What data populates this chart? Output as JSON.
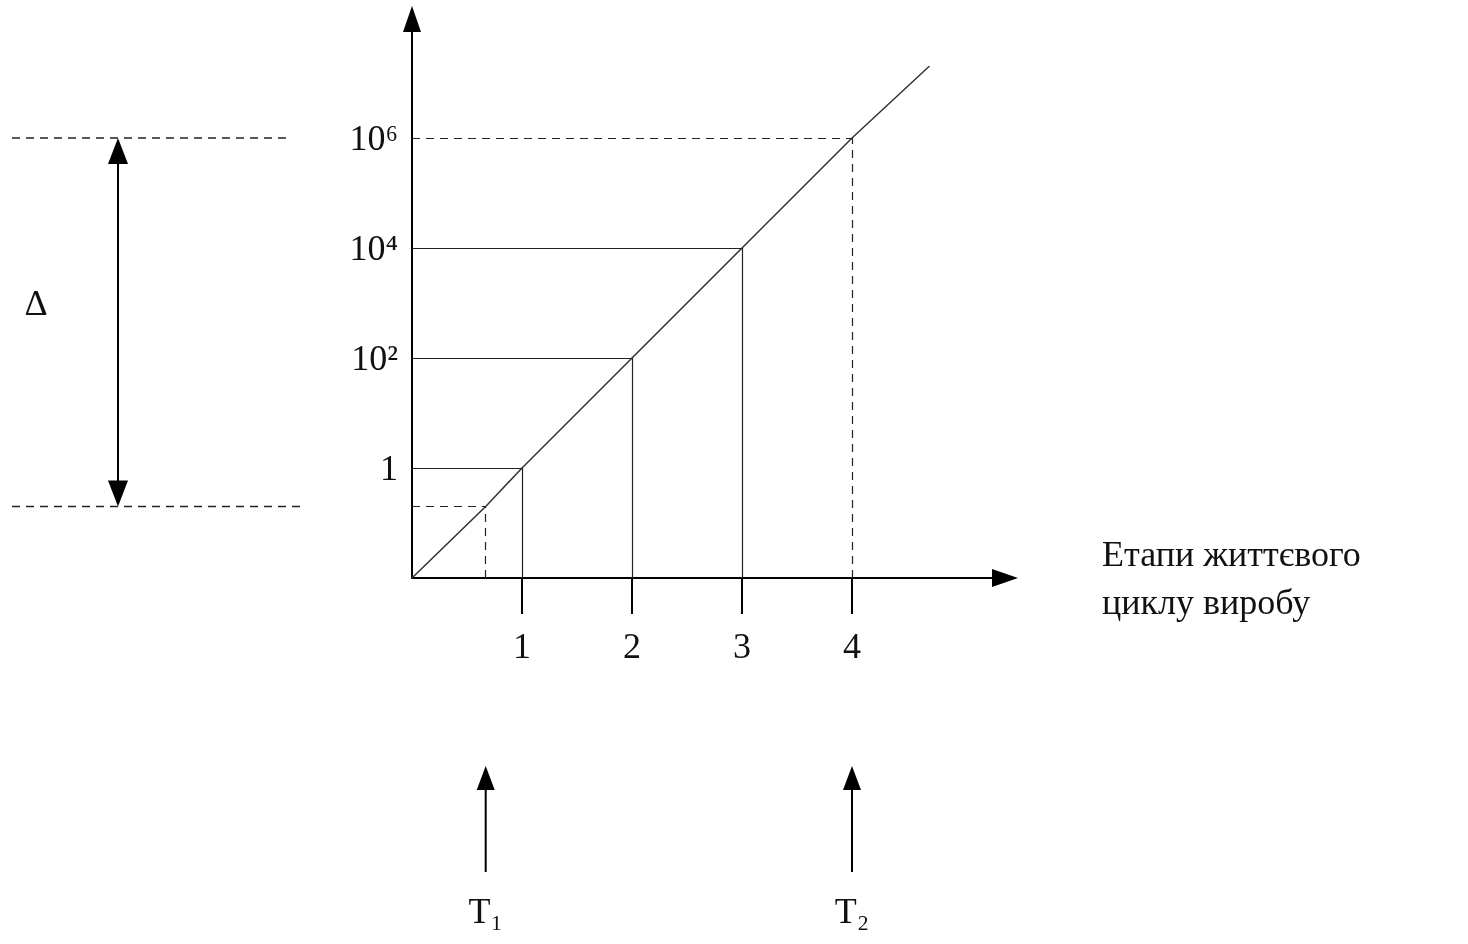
{
  "chart_data": {
    "type": "line",
    "xlabel": "Етапи життєвого циклу виробу",
    "x": [
      0,
      0.67,
      1,
      2,
      3,
      4,
      4.7
    ],
    "values": [
      0.01,
      0.2,
      1,
      100,
      10000,
      1000000,
      20000000
    ],
    "color": "#333333",
    "log": "y",
    "marker": "none",
    "line_style": "solid",
    "grid": false,
    "xlim": [
      0,
      5
    ],
    "ylim": [
      0.01,
      100000000
    ],
    "xticks": [
      1,
      2,
      3,
      4
    ],
    "yticks": [
      1,
      {
        "value": 100,
        "label": "10²"
      },
      {
        "value": 10000,
        "label": "10⁴"
      },
      {
        "value": 1000000,
        "label": "10⁶"
      }
    ],
    "ref_lines": [
      {
        "axis": "y",
        "value": 1,
        "line_style": "solid"
      },
      {
        "axis": "y",
        "value": 100,
        "line_style": "solid"
      },
      {
        "axis": "y",
        "value": 10000,
        "line_style": "solid"
      },
      {
        "axis": "y",
        "value": 1000000,
        "line_style": "dashed"
      },
      {
        "axis": "y",
        "value": 0.2,
        "line_style": "dashed"
      },
      {
        "axis": "x",
        "value": 1,
        "line_style": "solid"
      },
      {
        "axis": "x",
        "value": 2,
        "line_style": "solid"
      },
      {
        "axis": "x",
        "value": 3,
        "line_style": "solid"
      },
      {
        "axis": "x",
        "value": 4,
        "line_style": "dashed"
      },
      {
        "axis": "x",
        "value": 0.67,
        "line_style": "dashed"
      }
    ],
    "annotations": [
      "Δ",
      "T₁",
      "T₂"
    ]
  }
}
